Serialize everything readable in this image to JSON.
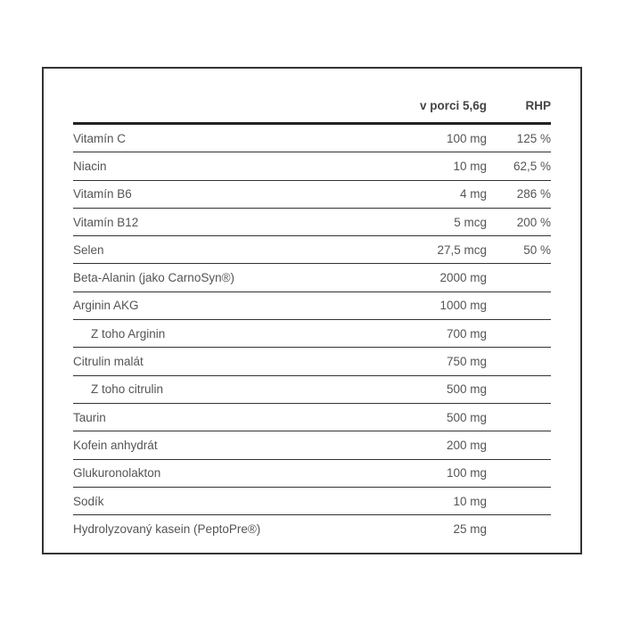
{
  "header": {
    "col_amount": "v porci 5,6g",
    "col_rhp": "RHP"
  },
  "rows": [
    {
      "name": "Vitamín C",
      "amount": "100 mg",
      "rhp": "125 %",
      "indent": false
    },
    {
      "name": "Niacin",
      "amount": "10 mg",
      "rhp": "62,5 %",
      "indent": false
    },
    {
      "name": "Vitamín B6",
      "amount": "4 mg",
      "rhp": "286 %",
      "indent": false
    },
    {
      "name": "Vitamín B12",
      "amount": "5 mcg",
      "rhp": "200 %",
      "indent": false
    },
    {
      "name": "Selen",
      "amount": "27,5 mcg",
      "rhp": "50 %",
      "indent": false
    },
    {
      "name": "Beta-Alanin (jako CarnoSyn®)",
      "amount": "2000 mg",
      "rhp": "",
      "indent": false
    },
    {
      "name": "Arginin AKG",
      "amount": "1000 mg",
      "rhp": "",
      "indent": false
    },
    {
      "name": "Z toho Arginin",
      "amount": "700 mg",
      "rhp": "",
      "indent": true
    },
    {
      "name": "Citrulin malát",
      "amount": "750 mg",
      "rhp": "",
      "indent": false
    },
    {
      "name": "Z toho citrulin",
      "amount": "500 mg",
      "rhp": "",
      "indent": true
    },
    {
      "name": "Taurin",
      "amount": "500 mg",
      "rhp": "",
      "indent": false
    },
    {
      "name": "Kofein anhydrát",
      "amount": "200 mg",
      "rhp": "",
      "indent": false
    },
    {
      "name": "Glukuronolakton",
      "amount": "100 mg",
      "rhp": "",
      "indent": false
    },
    {
      "name": "Sodík",
      "amount": "10 mg",
      "rhp": "",
      "indent": false
    },
    {
      "name": "Hydrolyzovaný kasein (PeptoPre®)",
      "amount": "25 mg",
      "rhp": "",
      "indent": false
    }
  ]
}
